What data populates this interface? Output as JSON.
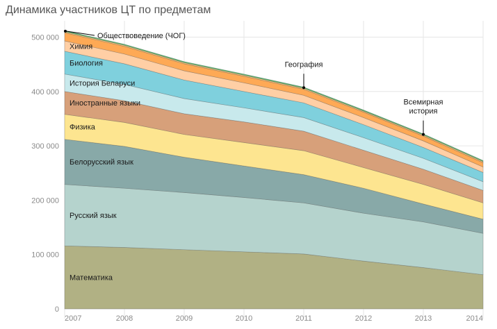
{
  "chart_data": {
    "type": "area",
    "stacked": true,
    "title": "Динамика участников ЦТ по предметам",
    "x": [
      "2007",
      "2008",
      "2009",
      "2010",
      "2011",
      "2012",
      "2013",
      "2014"
    ],
    "y_ticks": [
      "0",
      "100 000",
      "200 000",
      "300 000",
      "400 000",
      "500 000"
    ],
    "ylim": [
      0,
      530000
    ],
    "grid": true,
    "series": [
      {
        "name": "Математика",
        "color": "#b1b184",
        "values": [
          116000,
          113000,
          109000,
          105000,
          101000,
          88000,
          76000,
          63000
        ]
      },
      {
        "name": "Русский язык",
        "color": "#b5d3cd",
        "values": [
          113000,
          109000,
          105000,
          100000,
          94000,
          88000,
          84000,
          76000
        ]
      },
      {
        "name": "Белорусский язык",
        "color": "#88a9a8",
        "values": [
          83000,
          77000,
          65000,
          58000,
          52000,
          46000,
          33000,
          26000
        ]
      },
      {
        "name": "Физика",
        "color": "#fde590",
        "values": [
          46000,
          44000,
          42000,
          43000,
          44000,
          38000,
          36000,
          30000
        ]
      },
      {
        "name": "Иностранные языки",
        "color": "#d7a07a",
        "values": [
          42000,
          40000,
          38000,
          38000,
          36000,
          32000,
          28000,
          23000
        ]
      },
      {
        "name": "История Беларуси",
        "color": "#c8e9ec",
        "values": [
          32000,
          30000,
          28000,
          26000,
          25000,
          23000,
          20000,
          16000
        ]
      },
      {
        "name": "Биология",
        "color": "#7fd0dd",
        "values": [
          42000,
          38000,
          34000,
          30000,
          27000,
          24000,
          20000,
          17000
        ]
      },
      {
        "name": "Химия",
        "color": "#ffcfa5",
        "values": [
          19000,
          18000,
          17000,
          16000,
          14000,
          13000,
          12000,
          10000
        ]
      },
      {
        "name": "География",
        "color": "#fea955",
        "values": [
          15000,
          14000,
          13000,
          12000,
          11000,
          10000,
          9000,
          8000
        ]
      },
      {
        "name": "Всемирная история",
        "color": "#f6c27e",
        "values": [
          2000,
          2000,
          2000,
          2000,
          2000,
          2000,
          2000,
          2000
        ]
      },
      {
        "name": "Обществоведение (ЧОГ)",
        "color": "#5db673",
        "values": [
          2000,
          2000,
          2000,
          2000,
          2000,
          2000,
          2000,
          2000
        ]
      }
    ],
    "annotations": [
      {
        "label": "Обществоведение (ЧОГ)",
        "x": "2007"
      },
      {
        "label": "География",
        "x": "2011"
      },
      {
        "label": "Всемирная история",
        "lines": [
          "Всемирная",
          "история"
        ],
        "x": "2013"
      }
    ]
  }
}
